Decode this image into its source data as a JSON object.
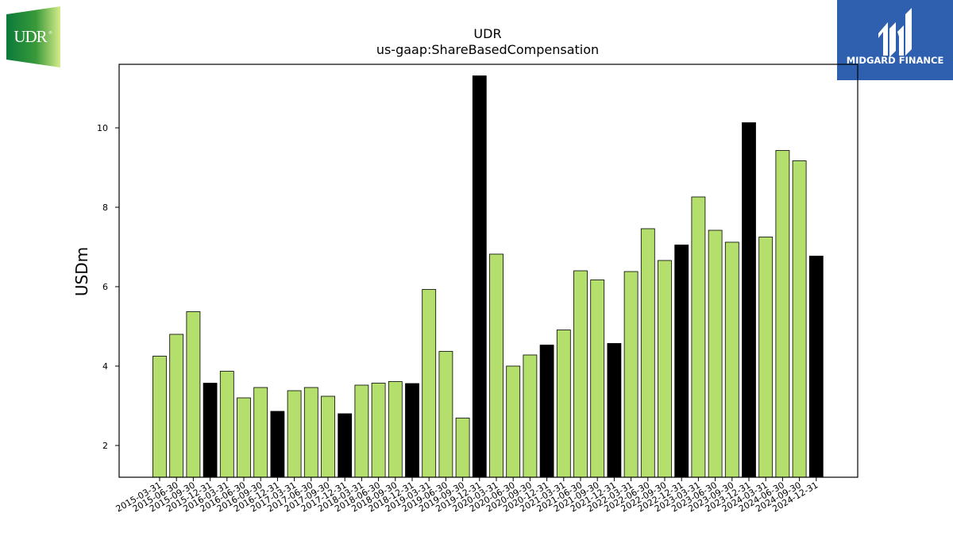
{
  "logos": {
    "left": {
      "text": "UDR",
      "colors": [
        "#0a7a3a",
        "#d7ec8a"
      ]
    },
    "right": {
      "text": "MIDGARD FINANCE",
      "color": "#2f5faf"
    }
  },
  "chart_data": {
    "type": "bar",
    "title": "UDR",
    "subtitle": "us-gaap:ShareBasedCompensation",
    "xlabel": "",
    "ylabel": "USDm",
    "ylim": [
      1.2,
      11.6
    ],
    "yticks": [
      2,
      4,
      6,
      8,
      10
    ],
    "grid": false,
    "colors": {
      "quarter": "#b5df6c",
      "year_end": "#000000",
      "edge": "#000000"
    },
    "categories": [
      "2015-03-31",
      "2015-06-30",
      "2015-09-30",
      "2015-12-31",
      "2016-03-31",
      "2016-06-30",
      "2016-09-30",
      "2016-12-31",
      "2017-03-31",
      "2017-06-30",
      "2017-09-30",
      "2017-12-31",
      "2018-03-31",
      "2018-06-30",
      "2018-09-30",
      "2018-12-31",
      "2019-03-31",
      "2019-06-30",
      "2019-09-30",
      "2019-12-31",
      "2020-03-31",
      "2020-06-30",
      "2020-09-30",
      "2020-12-31",
      "2021-03-31",
      "2021-06-30",
      "2021-09-30",
      "2021-12-31",
      "2022-03-31",
      "2022-06-30",
      "2022-09-30",
      "2022-12-31",
      "2023-03-31",
      "2023-06-30",
      "2023-09-30",
      "2023-12-31",
      "2024-03-31",
      "2024-06-30",
      "2024-09-30",
      "2024-12-31"
    ],
    "values": [
      4.25,
      4.8,
      5.37,
      3.57,
      3.87,
      3.2,
      3.46,
      2.86,
      3.38,
      3.46,
      3.24,
      2.8,
      3.52,
      3.57,
      3.61,
      3.56,
      5.93,
      4.37,
      2.69,
      11.31,
      6.82,
      4.0,
      4.28,
      4.53,
      4.91,
      6.4,
      6.17,
      4.57,
      6.38,
      7.46,
      6.66,
      7.05,
      8.26,
      7.42,
      7.12,
      10.13,
      7.25,
      9.43,
      9.17,
      6.77
    ]
  }
}
